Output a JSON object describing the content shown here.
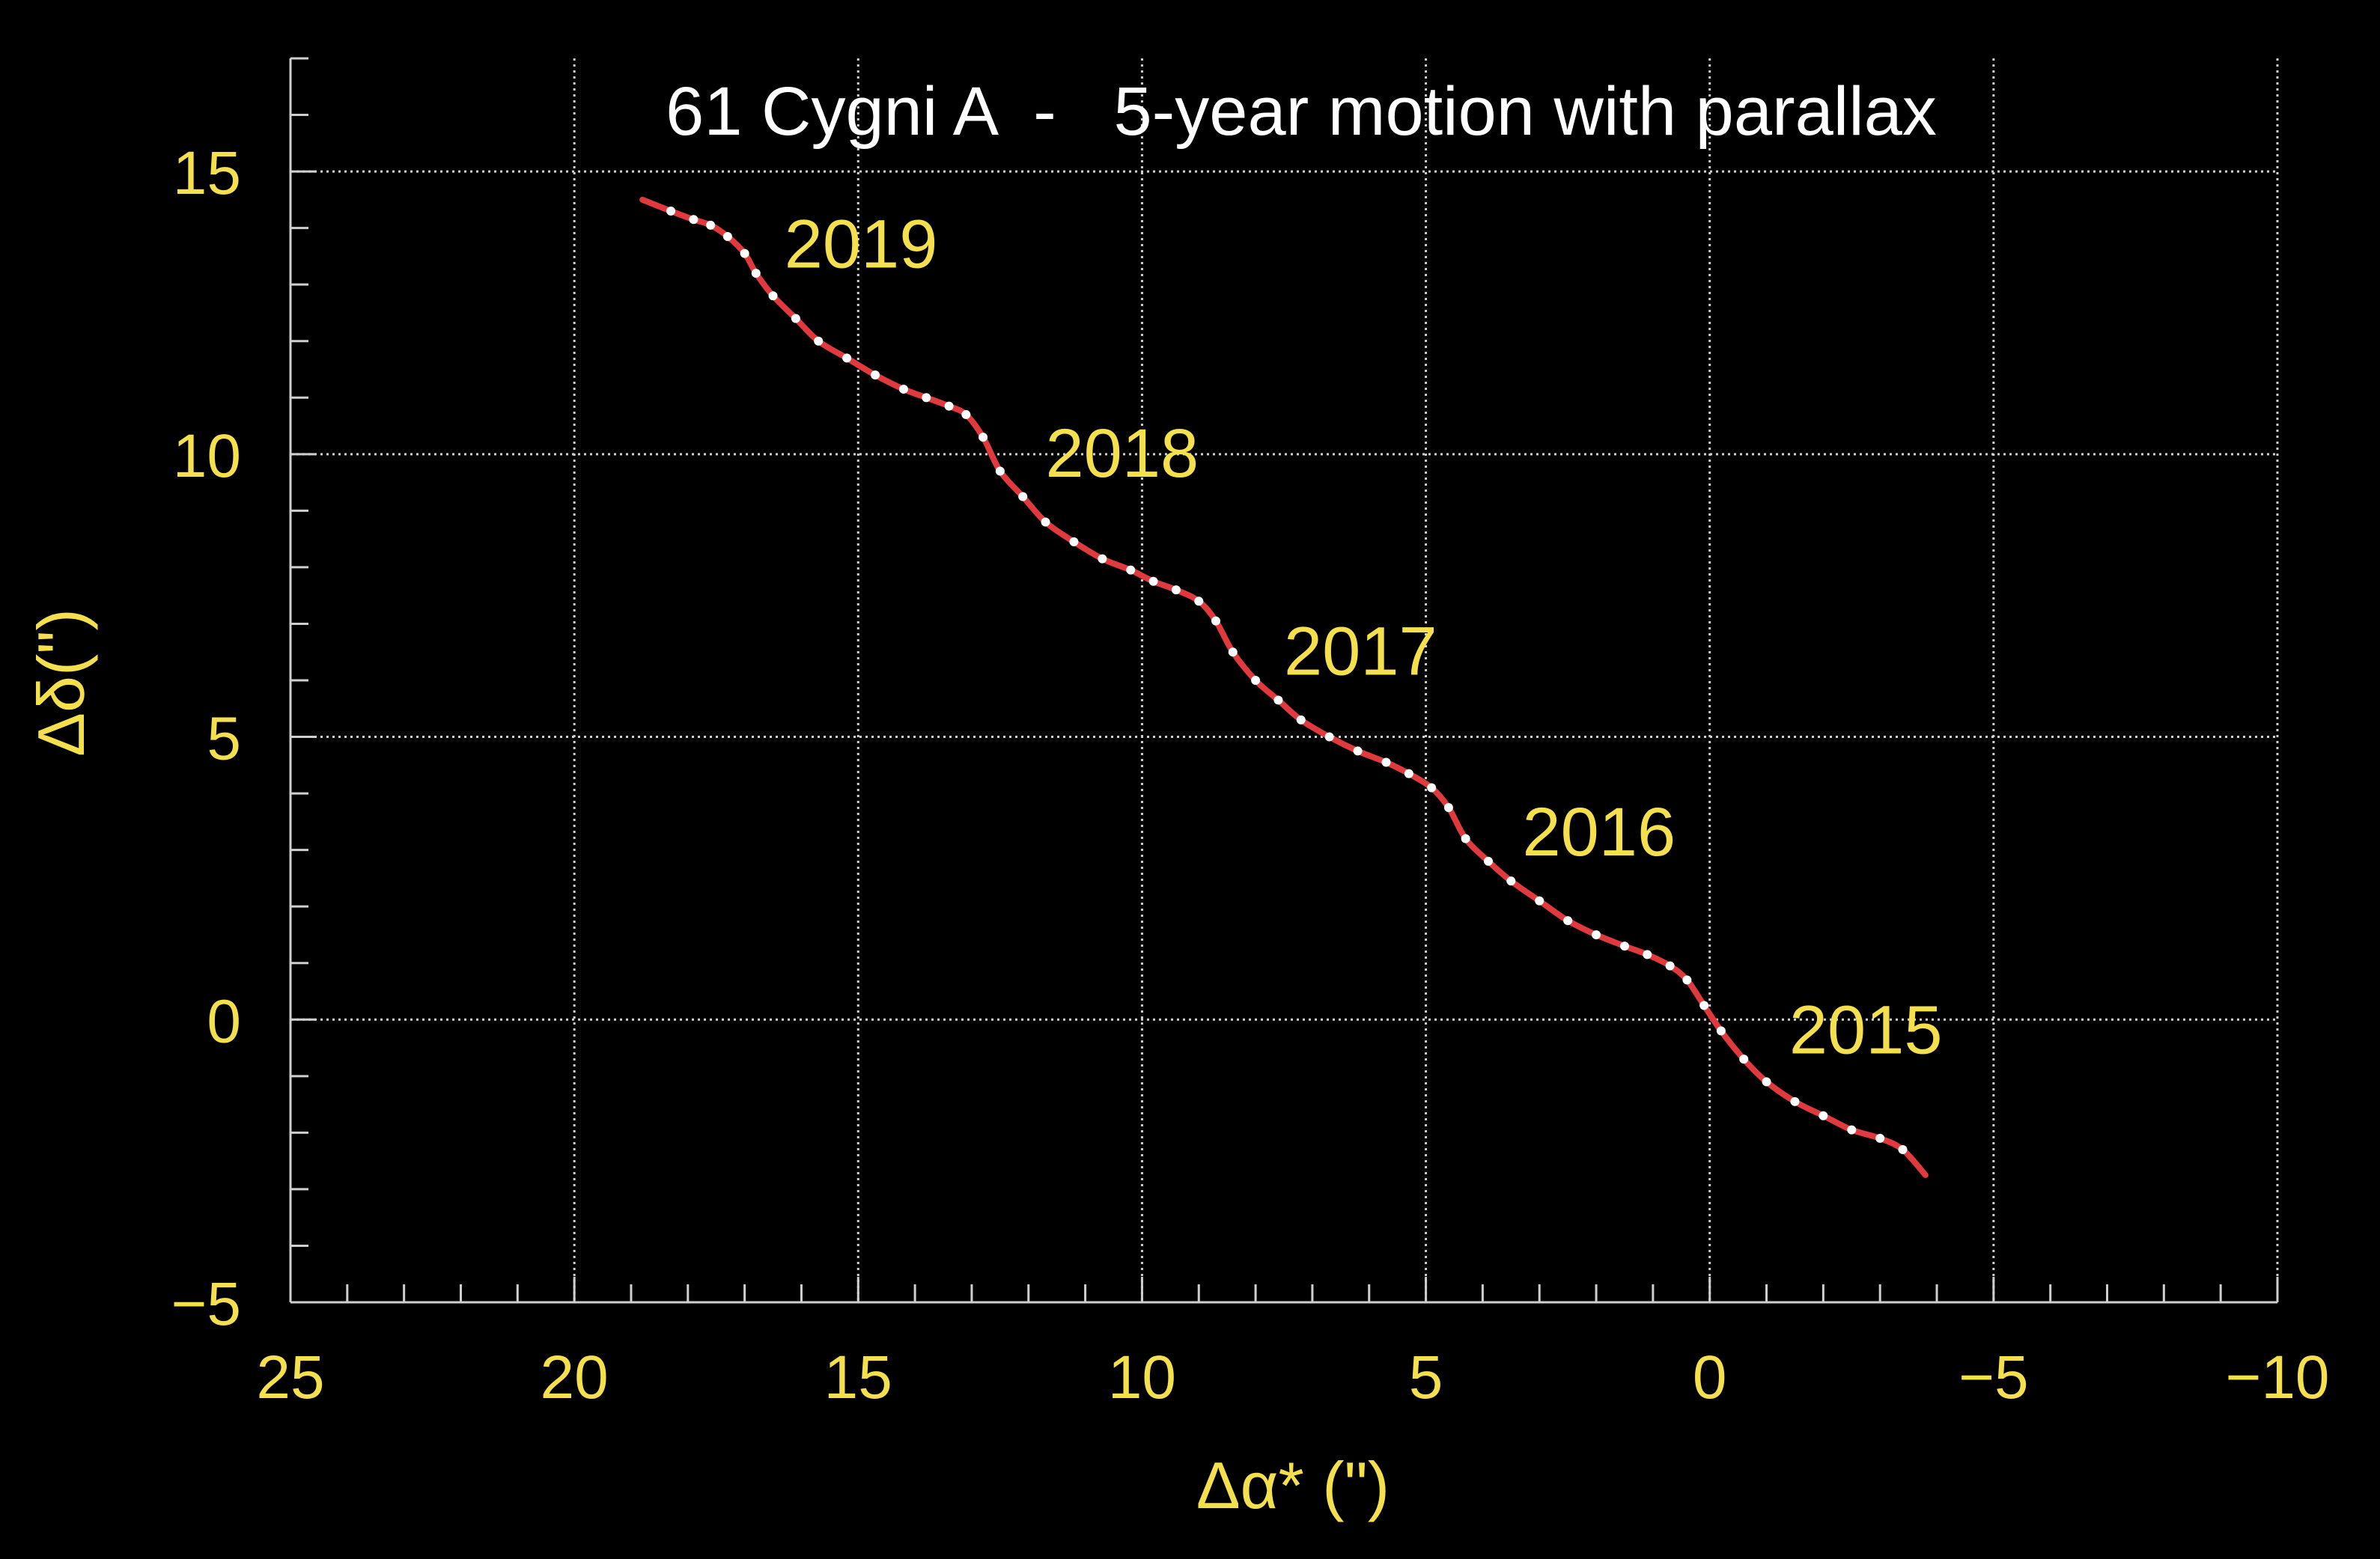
{
  "chart_data": {
    "type": "line",
    "title": "61 Cygni A  -   5-year motion with parallax",
    "xlabel": "Δα* (\")",
    "ylabel": "Δδ(\")",
    "xlim": [
      25,
      -10
    ],
    "ylim": [
      -5,
      17
    ],
    "x_reversed": true,
    "grid": true,
    "x_ticks": [
      25,
      20,
      15,
      10,
      5,
      0,
      -5,
      -10
    ],
    "x_tick_labels": [
      "25",
      "20",
      "15",
      "10",
      "5",
      "0",
      "−5",
      "−10"
    ],
    "y_ticks": [
      -5,
      0,
      5,
      10,
      15
    ],
    "y_tick_labels": [
      "−5",
      "0",
      "5",
      "10",
      "15"
    ],
    "colors": {
      "background": "#000000",
      "path": "#e0393e",
      "markers": "#ffffff",
      "labels": "#f4e04d",
      "title": "#ffffff",
      "grid": "#d0d0d0"
    },
    "annotations": [
      {
        "text": "2015",
        "x": -1.4,
        "y": -0.6
      },
      {
        "text": "2016",
        "x": 3.3,
        "y": 2.9
      },
      {
        "text": "2017",
        "x": 7.5,
        "y": 6.1
      },
      {
        "text": "2018",
        "x": 11.7,
        "y": 9.6
      },
      {
        "text": "2019",
        "x": 16.3,
        "y": 13.3
      }
    ],
    "series": [
      {
        "values": [
          [
            18.8,
            14.5
          ],
          [
            18.3,
            14.3
          ],
          [
            17.9,
            14.15
          ],
          [
            17.6,
            14.05
          ],
          [
            17.3,
            13.85
          ],
          [
            17.0,
            13.55
          ],
          [
            16.8,
            13.2
          ],
          [
            16.5,
            12.8
          ],
          [
            16.1,
            12.4
          ],
          [
            15.7,
            12.0
          ],
          [
            15.2,
            11.7
          ],
          [
            14.7,
            11.4
          ],
          [
            14.2,
            11.15
          ],
          [
            13.8,
            11.0
          ],
          [
            13.4,
            10.85
          ],
          [
            13.1,
            10.7
          ],
          [
            12.8,
            10.3
          ],
          [
            12.5,
            9.7
          ],
          [
            12.1,
            9.25
          ],
          [
            11.7,
            8.8
          ],
          [
            11.2,
            8.45
          ],
          [
            10.7,
            8.15
          ],
          [
            10.2,
            7.95
          ],
          [
            9.8,
            7.75
          ],
          [
            9.4,
            7.6
          ],
          [
            9.0,
            7.4
          ],
          [
            8.7,
            7.05
          ],
          [
            8.4,
            6.5
          ],
          [
            8.0,
            6.0
          ],
          [
            7.6,
            5.65
          ],
          [
            7.2,
            5.3
          ],
          [
            6.7,
            5.0
          ],
          [
            6.2,
            4.75
          ],
          [
            5.7,
            4.55
          ],
          [
            5.3,
            4.35
          ],
          [
            4.9,
            4.1
          ],
          [
            4.6,
            3.75
          ],
          [
            4.3,
            3.2
          ],
          [
            3.9,
            2.8
          ],
          [
            3.5,
            2.45
          ],
          [
            3.0,
            2.1
          ],
          [
            2.5,
            1.75
          ],
          [
            2.0,
            1.5
          ],
          [
            1.5,
            1.3
          ],
          [
            1.1,
            1.15
          ],
          [
            0.7,
            0.95
          ],
          [
            0.4,
            0.7
          ],
          [
            0.1,
            0.25
          ],
          [
            -0.2,
            -0.2
          ],
          [
            -0.6,
            -0.7
          ],
          [
            -1.0,
            -1.1
          ],
          [
            -1.5,
            -1.45
          ],
          [
            -2.0,
            -1.7
          ],
          [
            -2.5,
            -1.95
          ],
          [
            -3.0,
            -2.1
          ],
          [
            -3.4,
            -2.3
          ],
          [
            -3.8,
            -2.75
          ]
        ]
      }
    ]
  }
}
